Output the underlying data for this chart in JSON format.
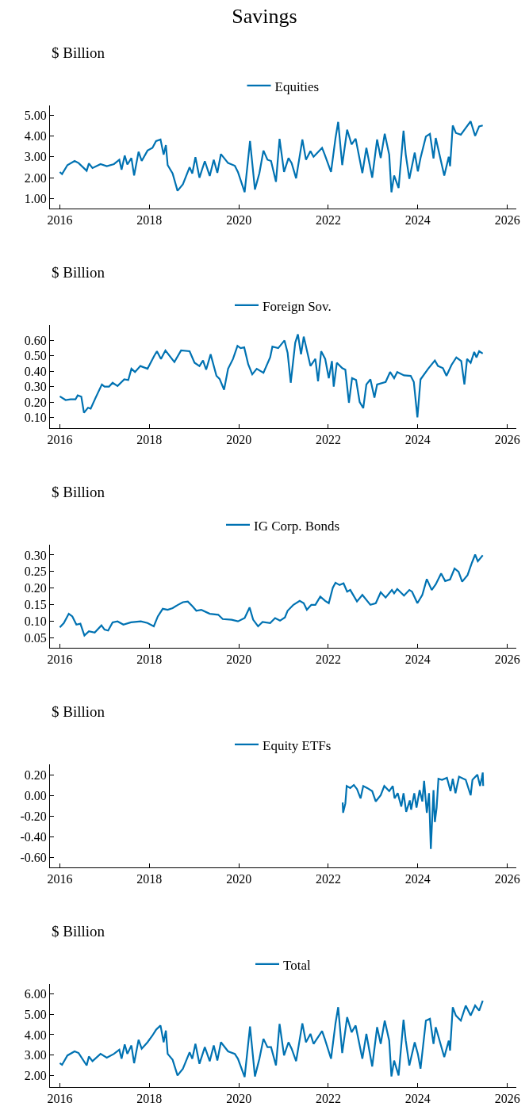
{
  "chart_data": [
    {
      "type": "line",
      "title": "Savings",
      "ylabel": "$ Billion",
      "legend": "top",
      "xlim": [
        2015.78,
        2026.2
      ],
      "xticks": [
        2016,
        2018,
        2020,
        2022,
        2024,
        2026
      ],
      "ylim": [
        0.52,
        5.46
      ],
      "yticks": [
        {
          "value": 1,
          "label": "1.00"
        },
        {
          "value": 2,
          "label": "2.00"
        },
        {
          "value": 3,
          "label": "3.00"
        },
        {
          "value": 4,
          "label": "4.00"
        },
        {
          "value": 5,
          "label": "5.00"
        }
      ],
      "x": [
        2016.0,
        2016.05,
        2016.17,
        2016.33,
        2016.42,
        2016.6,
        2016.65,
        2016.73,
        2016.91,
        2017.05,
        2017.21,
        2017.33,
        2017.38,
        2017.45,
        2017.51,
        2017.6,
        2017.66,
        2017.76,
        2017.83,
        2017.96,
        2018.07,
        2018.15,
        2018.25,
        2018.32,
        2018.37,
        2018.41,
        2018.52,
        2018.63,
        2018.75,
        2018.9,
        2018.96,
        2019.03,
        2019.12,
        2019.24,
        2019.35,
        2019.44,
        2019.52,
        2019.6,
        2019.76,
        2019.91,
        2019.98,
        2020.13,
        2020.25,
        2020.36,
        2020.46,
        2020.55,
        2020.64,
        2020.72,
        2020.83,
        2020.91,
        2021.01,
        2021.11,
        2021.18,
        2021.28,
        2021.42,
        2021.5,
        2021.6,
        2021.67,
        2021.86,
        2021.92,
        2022.06,
        2022.16,
        2022.22,
        2022.31,
        2022.42,
        2022.52,
        2022.61,
        2022.76,
        2022.85,
        2022.98,
        2023.09,
        2023.17,
        2023.26,
        2023.36,
        2023.41,
        2023.47,
        2023.57,
        2023.68,
        2023.73,
        2023.81,
        2023.93,
        2024.0,
        2024.06,
        2024.18,
        2024.27,
        2024.35,
        2024.4,
        2024.59,
        2024.69,
        2024.72,
        2024.78,
        2024.85,
        2024.96,
        2025.07,
        2025.18,
        2025.28,
        2025.37,
        2025.45
      ],
      "series": [
        {
          "name": "Equities",
          "color": "#0072b2",
          "values": [
            2.27,
            2.17,
            2.6,
            2.8,
            2.7,
            2.33,
            2.68,
            2.46,
            2.65,
            2.55,
            2.65,
            2.86,
            2.38,
            3.06,
            2.63,
            2.94,
            2.1,
            3.24,
            2.8,
            3.3,
            3.43,
            3.75,
            3.83,
            3.1,
            3.56,
            2.6,
            2.2,
            1.37,
            1.68,
            2.5,
            2.2,
            2.98,
            2.0,
            2.79,
            2.08,
            2.86,
            2.23,
            3.13,
            2.7,
            2.57,
            2.27,
            1.3,
            3.76,
            1.43,
            2.22,
            3.3,
            2.86,
            2.8,
            1.8,
            3.86,
            2.27,
            2.94,
            2.7,
            1.97,
            3.83,
            2.86,
            3.27,
            3.0,
            3.43,
            3.1,
            2.27,
            3.9,
            4.67,
            2.6,
            4.3,
            3.59,
            3.87,
            2.22,
            3.43,
            2.0,
            3.83,
            2.94,
            4.1,
            3.1,
            1.3,
            2.1,
            1.5,
            4.25,
            3.1,
            1.94,
            3.2,
            2.3,
            2.94,
            3.97,
            4.1,
            2.92,
            3.9,
            2.1,
            3.0,
            2.55,
            4.5,
            4.14,
            4.06,
            4.38,
            4.7,
            4.0,
            4.46,
            4.5
          ]
        }
      ]
    },
    {
      "type": "line",
      "ylabel": "$ Billion",
      "legend": "top",
      "xlim": [
        2015.78,
        2026.2
      ],
      "xticks": [
        2016,
        2018,
        2020,
        2022,
        2024,
        2026
      ],
      "ylim": [
        0.03,
        0.7
      ],
      "yticks": [
        {
          "value": 0.1,
          "label": "0.10"
        },
        {
          "value": 0.2,
          "label": "0.20"
        },
        {
          "value": 0.3,
          "label": "0.30"
        },
        {
          "value": 0.4,
          "label": "0.40"
        },
        {
          "value": 0.5,
          "label": "0.50"
        },
        {
          "value": 0.6,
          "label": "0.60"
        }
      ],
      "x": [
        2016.0,
        2016.13,
        2016.24,
        2016.35,
        2016.4,
        2016.48,
        2016.54,
        2016.63,
        2016.69,
        2016.8,
        2016.94,
        2017.0,
        2017.1,
        2017.18,
        2017.29,
        2017.44,
        2017.53,
        2017.6,
        2017.68,
        2017.8,
        2017.96,
        2018.11,
        2018.17,
        2018.26,
        2018.36,
        2018.56,
        2018.71,
        2018.9,
        2019.01,
        2019.12,
        2019.2,
        2019.27,
        2019.37,
        2019.5,
        2019.57,
        2019.67,
        2019.76,
        2019.87,
        2019.97,
        2020.04,
        2020.12,
        2020.21,
        2020.3,
        2020.4,
        2020.55,
        2020.7,
        2020.75,
        2020.88,
        2021.02,
        2021.09,
        2021.16,
        2021.26,
        2021.32,
        2021.39,
        2021.45,
        2021.6,
        2021.71,
        2021.77,
        2021.84,
        2021.93,
        2022.01,
        2022.08,
        2022.12,
        2022.19,
        2022.31,
        2022.38,
        2022.46,
        2022.53,
        2022.62,
        2022.7,
        2022.78,
        2022.85,
        2022.94,
        2023.03,
        2023.09,
        2023.28,
        2023.38,
        2023.47,
        2023.54,
        2023.69,
        2023.84,
        2023.91,
        2023.99,
        2024.06,
        2024.23,
        2024.38,
        2024.45,
        2024.56,
        2024.64,
        2024.75,
        2024.86,
        2024.97,
        2025.04,
        2025.1,
        2025.18,
        2025.26,
        2025.31,
        2025.37,
        2025.45
      ],
      "series": [
        {
          "name": "Foreign Sov.",
          "color": "#0072b2",
          "values": [
            0.237,
            0.213,
            0.217,
            0.217,
            0.243,
            0.235,
            0.13,
            0.163,
            0.157,
            0.228,
            0.314,
            0.3,
            0.3,
            0.325,
            0.304,
            0.347,
            0.343,
            0.416,
            0.395,
            0.434,
            0.416,
            0.5,
            0.53,
            0.48,
            0.535,
            0.46,
            0.535,
            0.53,
            0.455,
            0.434,
            0.47,
            0.41,
            0.51,
            0.37,
            0.35,
            0.28,
            0.416,
            0.48,
            0.565,
            0.55,
            0.555,
            0.445,
            0.38,
            0.416,
            0.39,
            0.49,
            0.56,
            0.55,
            0.6,
            0.52,
            0.325,
            0.585,
            0.64,
            0.51,
            0.625,
            0.434,
            0.48,
            0.335,
            0.53,
            0.48,
            0.355,
            0.466,
            0.3,
            0.455,
            0.42,
            0.41,
            0.195,
            0.355,
            0.343,
            0.2,
            0.16,
            0.314,
            0.347,
            0.228,
            0.314,
            0.33,
            0.395,
            0.355,
            0.395,
            0.373,
            0.37,
            0.33,
            0.1,
            0.347,
            0.416,
            0.47,
            0.434,
            0.42,
            0.37,
            0.44,
            0.49,
            0.466,
            0.314,
            0.48,
            0.455,
            0.525,
            0.49,
            0.53,
            0.515
          ]
        }
      ]
    },
    {
      "type": "line",
      "ylabel": "$ Billion",
      "legend": "top",
      "xlim": [
        2015.78,
        2026.2
      ],
      "xticks": [
        2016,
        2018,
        2020,
        2022,
        2024,
        2026
      ],
      "ylim": [
        0.019,
        0.331
      ],
      "yticks": [
        {
          "value": 0.05,
          "label": "0.05"
        },
        {
          "value": 0.1,
          "label": "0.10"
        },
        {
          "value": 0.15,
          "label": "0.15"
        },
        {
          "value": 0.2,
          "label": "0.20"
        },
        {
          "value": 0.25,
          "label": "0.25"
        },
        {
          "value": 0.3,
          "label": "0.30"
        }
      ],
      "x": [
        2016.0,
        2016.09,
        2016.2,
        2016.28,
        2016.37,
        2016.46,
        2016.55,
        2016.65,
        2016.78,
        2016.93,
        2017.0,
        2017.08,
        2017.18,
        2017.29,
        2017.42,
        2017.59,
        2017.81,
        2017.96,
        2018.1,
        2018.19,
        2018.3,
        2018.41,
        2018.52,
        2018.64,
        2018.75,
        2018.86,
        2018.97,
        2019.05,
        2019.16,
        2019.35,
        2019.54,
        2019.64,
        2019.84,
        2019.98,
        2020.13,
        2020.24,
        2020.32,
        2020.43,
        2020.53,
        2020.7,
        2020.81,
        2020.92,
        2021.03,
        2021.09,
        2021.22,
        2021.36,
        2021.45,
        2021.52,
        2021.62,
        2021.71,
        2021.82,
        2021.93,
        2022.01,
        2022.1,
        2022.16,
        2022.25,
        2022.34,
        2022.42,
        2022.49,
        2022.64,
        2022.76,
        2022.94,
        2023.06,
        2023.17,
        2023.28,
        2023.42,
        2023.47,
        2023.54,
        2023.69,
        2023.81,
        2023.87,
        2023.99,
        2024.1,
        2024.2,
        2024.31,
        2024.4,
        2024.52,
        2024.61,
        2024.72,
        2024.82,
        2024.91,
        2024.99,
        2025.11,
        2025.21,
        2025.28,
        2025.34,
        2025.45
      ],
      "series": [
        {
          "name": "IG Corp. Bonds",
          "color": "#0072b2",
          "values": [
            0.081,
            0.094,
            0.122,
            0.114,
            0.089,
            0.092,
            0.056,
            0.069,
            0.065,
            0.087,
            0.074,
            0.071,
            0.096,
            0.099,
            0.089,
            0.096,
            0.099,
            0.094,
            0.084,
            0.114,
            0.137,
            0.134,
            0.139,
            0.149,
            0.157,
            0.159,
            0.144,
            0.131,
            0.134,
            0.122,
            0.119,
            0.106,
            0.104,
            0.099,
            0.109,
            0.141,
            0.104,
            0.084,
            0.097,
            0.094,
            0.109,
            0.101,
            0.111,
            0.131,
            0.149,
            0.161,
            0.154,
            0.134,
            0.149,
            0.149,
            0.174,
            0.161,
            0.154,
            0.201,
            0.216,
            0.209,
            0.214,
            0.189,
            0.194,
            0.159,
            0.179,
            0.149,
            0.154,
            0.187,
            0.171,
            0.194,
            0.184,
            0.197,
            0.177,
            0.194,
            0.189,
            0.154,
            0.179,
            0.227,
            0.194,
            0.211,
            0.244,
            0.221,
            0.226,
            0.259,
            0.249,
            0.219,
            0.239,
            0.277,
            0.301,
            0.281,
            0.299
          ]
        }
      ]
    },
    {
      "type": "line",
      "ylabel": "$ Billion",
      "legend": "top",
      "xlim": [
        2015.78,
        2026.2
      ],
      "xticks": [
        2016,
        2018,
        2020,
        2022,
        2024,
        2026
      ],
      "ylim": [
        -0.7,
        0.3
      ],
      "yticks": [
        {
          "value": -0.6,
          "label": "-0.60"
        },
        {
          "value": -0.4,
          "label": "-0.40"
        },
        {
          "value": -0.2,
          "label": "-0.20"
        },
        {
          "value": 0,
          "label": "0.00"
        },
        {
          "value": 0.2,
          "label": "0.20"
        }
      ],
      "x": [
        2022.32,
        2022.33,
        2022.38,
        2022.41,
        2022.49,
        2022.57,
        2022.64,
        2022.72,
        2022.78,
        2022.87,
        2022.98,
        2023.06,
        2023.17,
        2023.25,
        2023.36,
        2023.44,
        2023.48,
        2023.55,
        2023.63,
        2023.68,
        2023.74,
        2023.82,
        2023.85,
        2023.92,
        2023.97,
        2024.04,
        2024.1,
        2024.14,
        2024.2,
        2024.25,
        2024.29,
        2024.35,
        2024.38,
        2024.42,
        2024.46,
        2024.54,
        2024.65,
        2024.73,
        2024.78,
        2024.84,
        2024.92,
        2025.07,
        2025.18,
        2025.22,
        2025.33,
        2025.39,
        2025.43,
        2025.45,
        2025.46
      ],
      "series": [
        {
          "name": "Equity ETFs",
          "color": "#0072b2",
          "values": [
            -0.07,
            -0.17,
            -0.08,
            0.09,
            0.07,
            0.1,
            0.06,
            -0.03,
            0.09,
            0.07,
            0.04,
            -0.06,
            0.0,
            0.09,
            0.04,
            0.09,
            -0.03,
            0.02,
            -0.11,
            0.02,
            -0.16,
            -0.05,
            -0.14,
            0.02,
            -0.12,
            0.05,
            -0.06,
            0.14,
            -0.17,
            0.02,
            -0.52,
            0.05,
            -0.26,
            -0.12,
            0.16,
            0.15,
            0.17,
            0.04,
            0.16,
            0.02,
            0.18,
            0.15,
            0.0,
            0.15,
            0.2,
            0.09,
            0.17,
            0.22,
            0.09
          ]
        }
      ]
    },
    {
      "type": "line",
      "ylabel": "$ Billion",
      "legend": "top",
      "xlim": [
        2015.78,
        2026.2
      ],
      "xticks": [
        2016,
        2018,
        2020,
        2022,
        2024,
        2026
      ],
      "ylim": [
        1.43,
        6.49
      ],
      "yticks": [
        {
          "value": 2,
          "label": "2.00"
        },
        {
          "value": 3,
          "label": "3.00"
        },
        {
          "value": 4,
          "label": "4.00"
        },
        {
          "value": 5,
          "label": "5.00"
        },
        {
          "value": 6,
          "label": "6.00"
        }
      ],
      "x": [
        2016.0,
        2016.05,
        2016.17,
        2016.33,
        2016.42,
        2016.6,
        2016.65,
        2016.73,
        2016.91,
        2017.05,
        2017.21,
        2017.33,
        2017.38,
        2017.45,
        2017.51,
        2017.6,
        2017.66,
        2017.76,
        2017.83,
        2017.96,
        2018.07,
        2018.15,
        2018.25,
        2018.32,
        2018.37,
        2018.41,
        2018.52,
        2018.63,
        2018.75,
        2018.9,
        2018.96,
        2019.03,
        2019.12,
        2019.24,
        2019.35,
        2019.44,
        2019.52,
        2019.6,
        2019.76,
        2019.91,
        2019.98,
        2020.13,
        2020.25,
        2020.36,
        2020.46,
        2020.55,
        2020.64,
        2020.72,
        2020.83,
        2020.91,
        2021.01,
        2021.11,
        2021.18,
        2021.28,
        2021.42,
        2021.5,
        2021.6,
        2021.67,
        2021.86,
        2021.92,
        2022.06,
        2022.16,
        2022.22,
        2022.31,
        2022.42,
        2022.52,
        2022.61,
        2022.76,
        2022.85,
        2022.98,
        2023.09,
        2023.17,
        2023.26,
        2023.36,
        2023.41,
        2023.47,
        2023.57,
        2023.68,
        2023.73,
        2023.81,
        2023.93,
        2024.0,
        2024.06,
        2024.18,
        2024.27,
        2024.35,
        2024.4,
        2024.59,
        2024.69,
        2024.72,
        2024.78,
        2024.85,
        2024.96,
        2025.07,
        2025.18,
        2025.28,
        2025.37,
        2025.45
      ],
      "series": [
        {
          "name": "Total",
          "color": "#0072b2",
          "values": [
            2.6,
            2.52,
            2.98,
            3.18,
            3.1,
            2.49,
            2.93,
            2.7,
            3.06,
            2.87,
            3.06,
            3.26,
            2.82,
            3.52,
            3.06,
            3.47,
            2.6,
            3.75,
            3.31,
            3.63,
            3.96,
            4.24,
            4.45,
            3.63,
            4.2,
            3.06,
            2.77,
            2.0,
            2.33,
            3.14,
            2.82,
            3.55,
            2.57,
            3.39,
            2.7,
            3.47,
            2.73,
            3.63,
            3.18,
            3.06,
            2.82,
            1.92,
            4.4,
            1.95,
            2.82,
            3.8,
            3.39,
            3.39,
            2.49,
            4.53,
            2.98,
            3.63,
            3.31,
            2.7,
            4.56,
            3.63,
            4.04,
            3.55,
            4.18,
            3.8,
            2.82,
            4.56,
            5.35,
            3.1,
            4.86,
            4.12,
            4.45,
            2.82,
            4.04,
            2.44,
            4.37,
            3.55,
            4.69,
            3.71,
            1.95,
            2.73,
            2.0,
            4.73,
            3.71,
            2.49,
            3.63,
            3.06,
            2.33,
            4.69,
            4.78,
            3.55,
            4.37,
            2.9,
            3.71,
            3.22,
            5.35,
            4.94,
            4.69,
            5.43,
            4.94,
            5.43,
            5.18,
            5.67
          ]
        }
      ]
    }
  ]
}
